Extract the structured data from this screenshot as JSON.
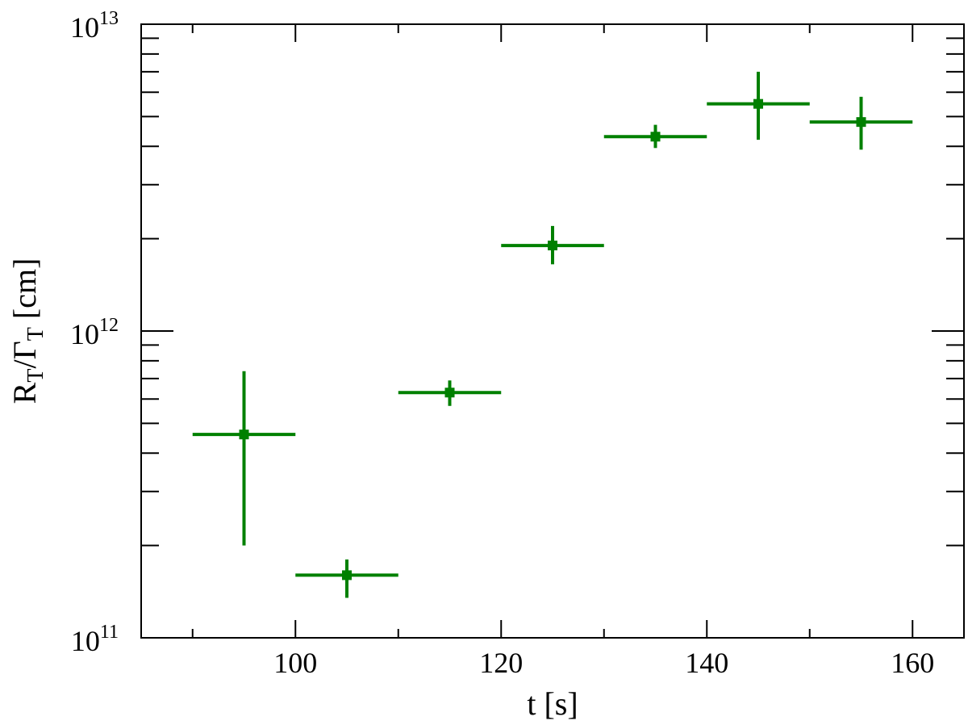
{
  "chart_data": {
    "type": "scatter",
    "xlabel": "t [s]",
    "ylabel": {
      "parts": [
        {
          "text": "R",
          "sub": false
        },
        {
          "text": "T",
          "sub": true
        },
        {
          "text": "/Γ",
          "sub": false
        },
        {
          "text": "T",
          "sub": true
        },
        {
          "text": " [cm]",
          "sub": false
        }
      ]
    },
    "xlim": [
      85,
      165
    ],
    "ylim": [
      100000000000.0,
      10000000000000.0
    ],
    "yscale": "log",
    "xticks": [
      100,
      120,
      140,
      160
    ],
    "xtick_labels": [
      "100",
      "120",
      "140",
      "160"
    ],
    "yticks": [
      {
        "value": 100000000000.0,
        "base": "10",
        "exp": "11"
      },
      {
        "value": 1000000000000.0,
        "base": "10",
        "exp": "12"
      },
      {
        "value": 10000000000000.0,
        "base": "10",
        "exp": "13"
      }
    ],
    "color": "#008000",
    "grid": false,
    "series": [
      {
        "points": [
          {
            "x": 95,
            "xerr": 5,
            "y": 460000000000.0,
            "ylo": 200000000000.0,
            "yhi": 740000000000.0
          },
          {
            "x": 105,
            "xerr": 5,
            "y": 160000000000.0,
            "ylo": 135000000000.0,
            "yhi": 180000000000.0
          },
          {
            "x": 115,
            "xerr": 5,
            "y": 630000000000.0,
            "ylo": 570000000000.0,
            "yhi": 690000000000.0
          },
          {
            "x": 125,
            "xerr": 5,
            "y": 1900000000000.0,
            "ylo": 1650000000000.0,
            "yhi": 2200000000000.0
          },
          {
            "x": 135,
            "xerr": 5,
            "y": 4300000000000.0,
            "ylo": 3950000000000.0,
            "yhi": 4700000000000.0
          },
          {
            "x": 145,
            "xerr": 5,
            "y": 5500000000000.0,
            "ylo": 4200000000000.0,
            "yhi": 7000000000000.0
          },
          {
            "x": 155,
            "xerr": 5,
            "y": 4800000000000.0,
            "ylo": 3900000000000.0,
            "yhi": 5800000000000.0
          }
        ]
      }
    ]
  }
}
